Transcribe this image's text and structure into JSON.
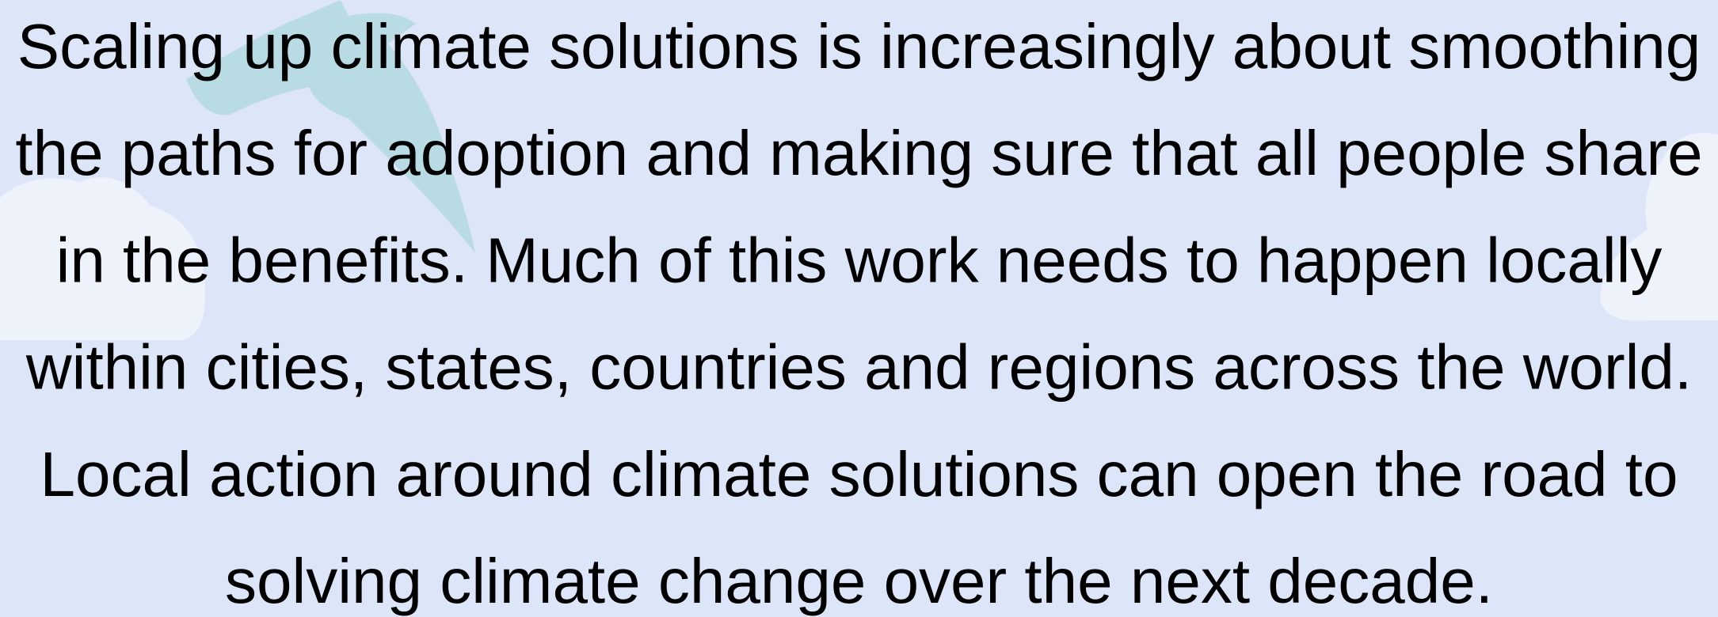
{
  "text": {
    "lines": [
      "Scaling up climate solutions is increasingly about smoothing",
      "the paths for adoption and making sure that all people share",
      "in the benefits. Much of this work needs to happen locally",
      "within cities, states, countries and regions across the world.",
      "Local action around climate solutions can open the road to",
      "solving climate change over the next decade."
    ]
  }
}
